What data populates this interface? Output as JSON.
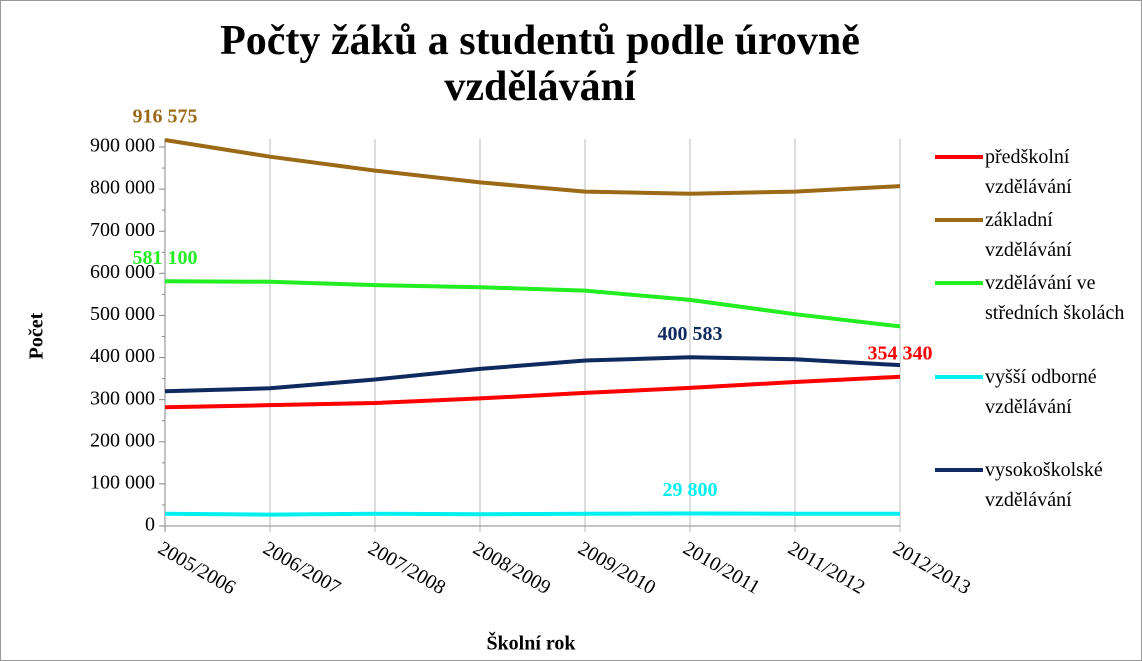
{
  "chart_data": {
    "type": "line",
    "title": "Počty žáků a studentů podle úrovně vzdělávání",
    "x_label": "Školní rok",
    "y_label": "Počet",
    "categories": [
      "2005/2006",
      "2006/2007",
      "2007/2008",
      "2008/2009",
      "2009/2010",
      "2010/2011",
      "2011/2012",
      "2012/2013"
    ],
    "series": [
      {
        "name": "předškolní vzdělávání",
        "color": "#ff0000",
        "values": [
          282000,
          287000,
          292000,
          303000,
          316000,
          328000,
          342000,
          354340
        ],
        "value_labels": [
          null,
          null,
          null,
          null,
          null,
          null,
          null,
          "354 340"
        ]
      },
      {
        "name": "základní vzdělávání",
        "color": "#9c6a17",
        "values": [
          916575,
          877000,
          844000,
          816000,
          794000,
          789000,
          794000,
          807000
        ],
        "value_labels": [
          "916 575",
          null,
          null,
          null,
          null,
          null,
          null,
          null
        ]
      },
      {
        "name": "vzdělávání ve středních školách",
        "color": "#22ee22",
        "values": [
          581100,
          580000,
          572000,
          567000,
          559000,
          537000,
          503000,
          474000
        ],
        "value_labels": [
          "581 100",
          null,
          null,
          null,
          null,
          null,
          null,
          null
        ]
      },
      {
        "name": "vyšší odborné vzdělávání",
        "color": "#00f0f0",
        "values": [
          29000,
          27000,
          29000,
          28000,
          29000,
          29800,
          29000,
          29000
        ],
        "value_labels": [
          null,
          null,
          null,
          null,
          null,
          "29 800",
          null,
          null
        ]
      },
      {
        "name": "vysokoškolské vzdělávání",
        "color": "#0f2a5e",
        "values": [
          320000,
          327000,
          348000,
          373000,
          393000,
          400583,
          396000,
          382000
        ],
        "value_labels": [
          null,
          null,
          null,
          null,
          null,
          "400 583",
          null,
          null
        ]
      }
    ],
    "ylim": [
      0,
      900000
    ],
    "yticks": [
      0,
      {
        "value": 100000,
        "label": "100 000"
      },
      {
        "value": 200000,
        "label": "200 000"
      },
      {
        "value": 300000,
        "label": "300 000"
      },
      {
        "value": 400000,
        "label": "400 000"
      },
      {
        "value": 500000,
        "label": "500 000"
      },
      {
        "value": 600000,
        "label": "600 000"
      },
      {
        "value": 700000,
        "label": "700 000"
      },
      {
        "value": 800000,
        "label": "800 000"
      },
      {
        "value": 900000,
        "label": "900 000"
      }
    ],
    "legend": "right"
  }
}
